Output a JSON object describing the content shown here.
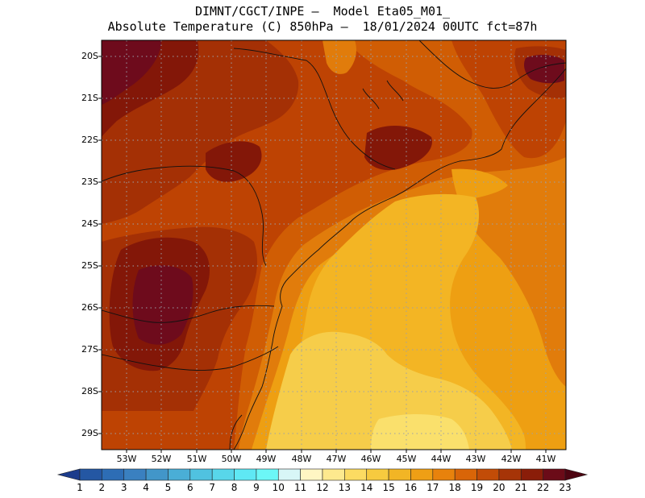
{
  "header": {
    "line1": "DIMNT/CGCT/INPE —  Model Eta05_M01_",
    "line2": "Absolute Temperature (C) 850hPa —  18/01/2024 00UTC fct=87h"
  },
  "map": {
    "lat_labels": [
      "20S",
      "21S",
      "22S",
      "23S",
      "24S",
      "25S",
      "26S",
      "27S",
      "28S",
      "29S"
    ],
    "lon_labels": [
      "53W",
      "52W",
      "51W",
      "50W",
      "49W",
      "48W",
      "47W",
      "46W",
      "45W",
      "44W",
      "43W",
      "42W",
      "41W"
    ],
    "gridlines": true
  },
  "colorbar": {
    "labels": [
      "1",
      "2",
      "3",
      "4",
      "5",
      "6",
      "7",
      "8",
      "9",
      "10",
      "11",
      "12",
      "13",
      "14",
      "15",
      "16",
      "17",
      "18",
      "19",
      "20",
      "21",
      "22",
      "23"
    ],
    "colors": [
      "#1c3c8c",
      "#2457a3",
      "#2d6db5",
      "#3a80c0",
      "#4296c9",
      "#4aaed6",
      "#50c2e0",
      "#58d6ea",
      "#5fe8f4",
      "#6cf7f7",
      "#d8f6f7",
      "#fff6c3",
      "#fde98e",
      "#fcdb62",
      "#f7ca3f",
      "#f2b525",
      "#ef9f15",
      "#e8820c",
      "#d96508",
      "#c24c07",
      "#a63407",
      "#8a1d09",
      "#6b0b18",
      "#4d0411"
    ]
  },
  "zones": [
    {
      "name": "t23",
      "color": "#6e0b1c"
    },
    {
      "name": "t22",
      "color": "#831708"
    },
    {
      "name": "t21",
      "color": "#a43005"
    },
    {
      "name": "t20",
      "color": "#be4303"
    },
    {
      "name": "t19",
      "color": "#d05d04"
    },
    {
      "name": "t18",
      "color": "#e17c0b"
    },
    {
      "name": "t17",
      "color": "#ee9f12"
    },
    {
      "name": "t16",
      "color": "#f3b524"
    },
    {
      "name": "t15",
      "color": "#f6cd4a"
    },
    {
      "name": "t14",
      "color": "#fae06c"
    }
  ]
}
